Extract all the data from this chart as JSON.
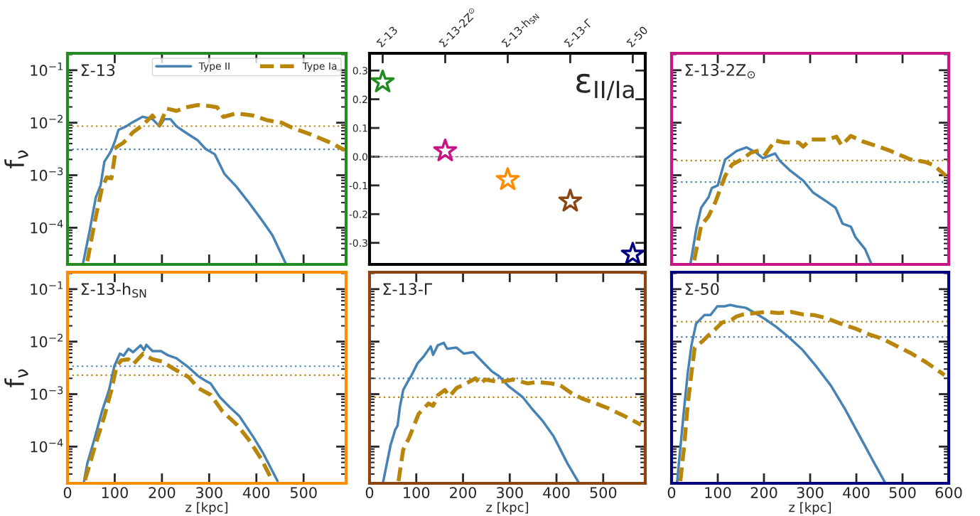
{
  "chart_data": [
    {
      "type": "line",
      "title": "Σ-13",
      "ylabel": "f$_{ν}$",
      "log": "y",
      "legend": "top right",
      "tick_labels": "y",
      "xlim": [
        0,
        590
      ],
      "xticks": [
        0,
        100,
        200,
        300,
        400,
        500
      ],
      "ylim": [
        2e-05,
        0.21
      ],
      "yticks": [
        {
          "value": 0.0001,
          "label": "10$^{−4}$"
        },
        {
          "value": 0.001,
          "label": "10$^{−3}$"
        },
        {
          "value": 0.01,
          "label": "10$^{−2}$"
        },
        {
          "value": 0.1,
          "label": "10$^{−1}$"
        }
      ],
      "series": [
        {
          "name": "Type II",
          "color": "#4682b4",
          "line_style": "solid",
          "x": [
            33,
            47,
            60,
            70,
            78,
            88,
            93,
            101,
            108,
            124,
            136,
            159,
            180,
            195,
            205,
            218,
            231,
            256,
            276,
            292,
            312,
            332,
            358,
            383,
            409,
            434,
            462
          ],
          "values": [
            2.1e-05,
            8.9e-05,
            0.00038,
            0.00064,
            0.0018,
            0.0025,
            0.003,
            0.0046,
            0.0073,
            0.0085,
            0.01,
            0.013,
            0.0117,
            0.0085,
            0.0117,
            0.0117,
            0.0085,
            0.006,
            0.0046,
            0.0032,
            0.0025,
            0.00107,
            0.0006,
            0.00031,
            0.00015,
            7.2e-05,
            2.1e-05
          ]
        },
        {
          "name": "Type Ia",
          "color": "#b8860b",
          "line_style": "dashed",
          "x": [
            42,
            58,
            73,
            83,
            93,
            103,
            119,
            139,
            159,
            180,
            195,
            210,
            231,
            251,
            276,
            302,
            317,
            330,
            358,
            393,
            424,
            454,
            475,
            515,
            556,
            587
          ],
          "values": [
            2.3e-05,
            0.000135,
            0.00057,
            0.00091,
            0.00087,
            0.0034,
            0.0042,
            0.0066,
            0.009,
            0.0137,
            0.009,
            0.0186,
            0.0168,
            0.0196,
            0.0218,
            0.0207,
            0.0196,
            0.0129,
            0.0151,
            0.0137,
            0.0111,
            0.01,
            0.0081,
            0.006,
            0.0042,
            0.003
          ]
        }
      ],
      "ref_lines": [
        {
          "axis": "y",
          "value": 0.0086,
          "color": "#b8860b",
          "line_style": "dotted"
        },
        {
          "axis": "y",
          "value": 0.0031,
          "color": "#4682b4",
          "line_style": "dotted"
        }
      ]
    },
    {
      "type": "scatter",
      "categories": [
        "Σ-13",
        "Σ-13-2Z$^{⊙}$",
        "Σ-13-h$_{SN}$",
        "Σ-13-Γ",
        "Σ-50"
      ],
      "marker": "star",
      "ylim": [
        -0.375,
        0.36
      ],
      "yticks": [
        -0.3,
        -0.2,
        -0.1,
        {
          "value": 0,
          "label": "0.0"
        },
        0.1,
        0.2,
        0.3
      ],
      "series": [
        {
          "colors": [
            "#228b22",
            "#c71585",
            "#ff8c00",
            "#8b4513",
            "#000080"
          ],
          "values": [
            0.26,
            0.02,
            -0.08,
            -0.155,
            -0.34
          ]
        }
      ],
      "ref_lines": [
        {
          "axis": "y",
          "value": 0,
          "color": "#808080",
          "line_style": "dashed"
        }
      ],
      "annotations": [
        "ε$_{II/Ia}$"
      ]
    },
    {
      "type": "line",
      "title": "Σ-13-2Z$_{⊙}$",
      "log": "y",
      "tick_labels": false,
      "xlim": [
        0,
        600
      ],
      "xticks": [
        0,
        100,
        200,
        300,
        400,
        500,
        600
      ],
      "ylim": [
        2e-05,
        0.21
      ],
      "yticks": [
        0.0001,
        0.001,
        0.01,
        0.1
      ],
      "series": [
        {
          "color": "#4682b4",
          "line_style": "solid",
          "x": [
            41,
            54,
            64,
            80,
            87,
            100,
            116,
            131,
            141,
            162,
            183,
            198,
            224,
            234,
            255,
            285,
            306,
            337,
            355,
            370,
            388,
            398,
            419,
            432
          ],
          "values": [
            2.1e-05,
            0.0001,
            0.00024,
            0.00038,
            0.00057,
            0.00064,
            0.002,
            0.0025,
            0.0029,
            0.0034,
            0.0027,
            0.0021,
            0.0026,
            0.0019,
            0.00126,
            0.00079,
            0.00047,
            0.00031,
            0.00024,
            0.00012,
            0.000105,
            6.6e-05,
            3.9e-05,
            2.1e-05
          ]
        },
        {
          "color": "#b8860b",
          "line_style": "dashed",
          "x": [
            49,
            64,
            80,
            95,
            116,
            131,
            152,
            172,
            193,
            203,
            224,
            244,
            275,
            285,
            301,
            337,
            357,
            368,
            388,
            414,
            440,
            470,
            491,
            517,
            548,
            568,
            594
          ],
          "values": [
            2.4e-05,
            0.00011,
            0.000165,
            0.00031,
            0.00097,
            0.0016,
            0.002,
            0.0027,
            0.003,
            0.0025,
            0.0046,
            0.0042,
            0.0042,
            0.0035,
            0.0048,
            0.0048,
            0.0054,
            0.0037,
            0.0056,
            0.0044,
            0.0037,
            0.003,
            0.0025,
            0.002,
            0.0018,
            0.00155,
            0.00097
          ]
        }
      ],
      "ref_lines": [
        {
          "axis": "y",
          "value": 0.0019,
          "color": "#b8860b",
          "line_style": "dotted"
        },
        {
          "axis": "y",
          "value": 0.00074,
          "color": "#4682b4",
          "line_style": "dotted"
        }
      ]
    },
    {
      "type": "line",
      "title": "Σ-13-h$_{SN}$",
      "xlabel": "z [kpc]",
      "ylabel": "f$_{ν}$",
      "log": "y",
      "xlim": [
        0,
        590
      ],
      "xticks": [
        0,
        100,
        200,
        300,
        400,
        500
      ],
      "ylim": [
        2e-05,
        0.21
      ],
      "yticks": [
        {
          "value": 0.0001,
          "label": "10$^{−4}$"
        },
        {
          "value": 0.001,
          "label": "10$^{−3}$"
        },
        {
          "value": 0.01,
          "label": "10$^{−2}$"
        },
        {
          "value": 0.1,
          "label": "10$^{−1}$"
        }
      ],
      "series": [
        {
          "color": "#4682b4",
          "line_style": "solid",
          "x": [
            35,
            42,
            58,
            73,
            88,
            99,
            111,
            119,
            129,
            139,
            155,
            162,
            167,
            180,
            198,
            211,
            231,
            257,
            277,
            292,
            303,
            323,
            343,
            364,
            394,
            415,
            445
          ],
          "values": [
            2.2e-05,
            4.8e-05,
            0.00015,
            0.00047,
            0.0012,
            0.0034,
            0.0059,
            0.0054,
            0.0073,
            0.0063,
            0.0085,
            0.0069,
            0.0087,
            0.0066,
            0.0066,
            0.0056,
            0.0048,
            0.0032,
            0.0022,
            0.0018,
            0.0016,
            0.00087,
            0.00057,
            0.00038,
            0.00015,
            7.3e-05,
            2.2e-05
          ]
        },
        {
          "color": "#b8860b",
          "line_style": "dashed",
          "x": [
            37,
            58,
            78,
            93,
            104,
            114,
            129,
            139,
            160,
            180,
            200,
            226,
            257,
            277,
            303,
            328,
            359,
            384,
            410,
            430
          ],
          "values": [
            2.3e-05,
            0.0001,
            0.00038,
            0.0012,
            0.0034,
            0.0044,
            0.0046,
            0.0037,
            0.0059,
            0.0046,
            0.0042,
            0.003,
            0.0021,
            0.0013,
            0.00097,
            0.00047,
            0.00026,
            0.000135,
            5.9e-05,
            2.6e-05
          ]
        }
      ],
      "ref_lines": [
        {
          "axis": "y",
          "value": 0.0034,
          "color": "#4682b4",
          "line_style": "dotted"
        },
        {
          "axis": "y",
          "value": 0.0023,
          "color": "#b8860b",
          "line_style": "dotted"
        }
      ]
    },
    {
      "type": "line",
      "title": "Σ-13-Γ",
      "xlabel": "z [kpc]",
      "log": "y",
      "tick_labels": "x",
      "xlim": [
        0,
        590
      ],
      "xticks": [
        0,
        100,
        200,
        300,
        400,
        500
      ],
      "ylim": [
        2e-05,
        0.21
      ],
      "yticks": [
        0.0001,
        0.001,
        0.01,
        0.1
      ],
      "series": [
        {
          "color": "#4682b4",
          "line_style": "solid",
          "x": [
            29,
            45,
            55,
            60,
            65,
            72,
            83,
            90,
            103,
            115,
            131,
            136,
            146,
            159,
            166,
            186,
            202,
            222,
            242,
            262,
            277,
            298,
            328,
            348,
            369,
            394,
            424,
            447
          ],
          "values": [
            2.1e-05,
            0.000107,
            0.00021,
            0.00025,
            0.00057,
            0.0012,
            0.0018,
            0.0023,
            0.0039,
            0.0051,
            0.0081,
            0.0056,
            0.0085,
            0.0095,
            0.0073,
            0.0077,
            0.0059,
            0.0063,
            0.0041,
            0.0027,
            0.0022,
            0.0014,
            0.00087,
            0.00052,
            0.00032,
            0.000156,
            4.7e-05,
            2.1e-05
          ]
        },
        {
          "color": "#b8860b",
          "line_style": "dashed",
          "x": [
            62,
            72,
            85,
            105,
            126,
            136,
            146,
            161,
            171,
            186,
            207,
            227,
            237,
            247,
            277,
            308,
            338,
            358,
            389,
            409,
            430,
            455,
            485,
            510,
            541,
            581
          ],
          "values": [
            2.2e-05,
            8.7e-05,
            0.00015,
            0.00042,
            0.00066,
            0.0006,
            0.00095,
            0.0012,
            0.00091,
            0.0013,
            0.0016,
            0.002,
            0.00155,
            0.0019,
            0.0017,
            0.0019,
            0.0016,
            0.0017,
            0.0016,
            0.00145,
            0.00107,
            0.00082,
            0.00066,
            0.00054,
            0.0004,
            0.00026
          ]
        }
      ],
      "ref_lines": [
        {
          "axis": "y",
          "value": 0.002,
          "color": "#4682b4",
          "line_style": "dotted"
        },
        {
          "axis": "y",
          "value": 0.00087,
          "color": "#b8860b",
          "line_style": "dotted"
        }
      ]
    },
    {
      "type": "line",
      "title": "Σ-50",
      "xlabel": "z [kpc]",
      "log": "y",
      "tick_labels": "x",
      "xlim": [
        0,
        600
      ],
      "xticks": [
        0,
        100,
        200,
        300,
        400,
        500,
        600
      ],
      "ylim": [
        2e-05,
        0.21
      ],
      "yticks": [
        0.0001,
        0.001,
        0.01,
        0.1
      ],
      "series": [
        {
          "color": "#4682b4",
          "line_style": "solid",
          "x": [
            12,
            19,
            27,
            35,
            43,
            53,
            61,
            71,
            84,
            99,
            114,
            127,
            140,
            161,
            181,
            202,
            227,
            253,
            284,
            314,
            345,
            376,
            407,
            437,
            463
          ],
          "values": [
            2.1e-05,
            9.5e-05,
            0.00052,
            0.0025,
            0.0085,
            0.022,
            0.026,
            0.032,
            0.032,
            0.047,
            0.047,
            0.05,
            0.047,
            0.044,
            0.035,
            0.027,
            0.019,
            0.0123,
            0.0069,
            0.0033,
            0.00145,
            0.00051,
            0.00016,
            5.2e-05,
            2e-05
          ]
        },
        {
          "color": "#b8860b",
          "line_style": "dashed",
          "x": [
            19,
            27,
            35,
            43,
            50,
            66,
            79,
            94,
            109,
            130,
            140,
            155,
            181,
            207,
            232,
            258,
            284,
            309,
            335,
            366,
            396,
            427,
            458,
            489,
            520,
            550,
            591
          ],
          "values": [
            2.2e-05,
            9.8e-05,
            0.00063,
            0.0025,
            0.0077,
            0.01,
            0.013,
            0.017,
            0.023,
            0.026,
            0.03,
            0.033,
            0.035,
            0.037,
            0.035,
            0.037,
            0.033,
            0.032,
            0.028,
            0.022,
            0.018,
            0.0138,
            0.0112,
            0.0081,
            0.0059,
            0.0041,
            0.0023
          ]
        }
      ],
      "ref_lines": [
        {
          "axis": "y",
          "value": 0.024,
          "color": "#b8860b",
          "line_style": "dotted"
        },
        {
          "axis": "y",
          "value": 0.0123,
          "color": "#4682b4",
          "line_style": "dotted"
        }
      ]
    }
  ]
}
